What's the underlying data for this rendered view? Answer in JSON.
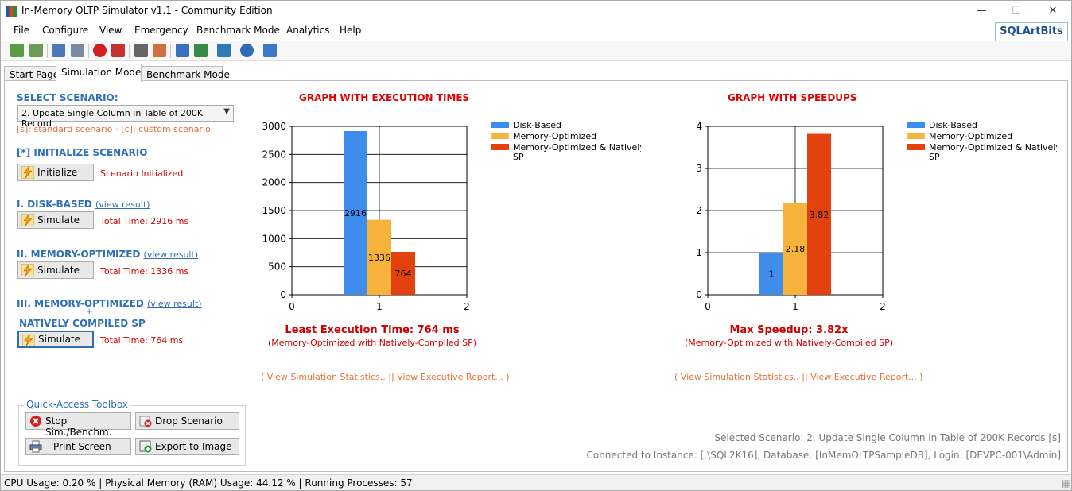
{
  "window": {
    "title": "In-Memory OLTP Simulator v1.1 - Community Edition",
    "minimize": "—",
    "maximize": "☐",
    "close": "✕"
  },
  "menu": [
    "File",
    "Configure",
    "View",
    "Emergency",
    "Benchmark Mode",
    "Analytics",
    "Help"
  ],
  "brand": "SQLArtBits",
  "tabs": [
    "Start Page",
    "Simulation Mode",
    "Benchmark Mode"
  ],
  "active_tab": "Simulation Mode",
  "left": {
    "select_scenario_label": "SELECT SCENARIO:",
    "scenario_selected": "2. Update Single Column in Table of 200K Record",
    "scenario_hint": "[s]: standard scenario  -  [c]: custom scenario",
    "init_label": "[*] INITIALIZE SCENARIO",
    "init_button": "Initialize",
    "init_status": "Scenario Initialized",
    "disk_label": "I. DISK-BASED",
    "mem_label": "II. MEMORY-OPTIMIZED",
    "native_label_1": "III. MEMORY-OPTIMIZED",
    "native_plus": "+",
    "native_label_2": "NATIVELY COMPILED SP",
    "view_result": "(view result)",
    "simulate_button": "Simulate",
    "disk_time": "Total Time: 2916 ms",
    "mem_time": "Total Time: 1336 ms",
    "native_time": "Total Time: 764 ms"
  },
  "charts_text": {
    "exec_title": "GRAPH WITH EXECUTION TIMES",
    "exec_result": "Least Execution Time: 764 ms",
    "exec_sub": "(Memory-Optimized with Natively-Compiled SP)",
    "speed_title": "GRAPH WITH SPEEDUPS",
    "speed_result": "Max Speedup: 3.82x",
    "speed_sub": "(Memory-Optimized with Natively-Compiled SP)",
    "link_open": "(",
    "link_stats": "View Simulation Statistics..",
    "link_sep": "||",
    "link_report": "View Executive Report...",
    "link_close": ")"
  },
  "chart_data": [
    {
      "type": "bar",
      "title": "GRAPH WITH EXECUTION TIMES",
      "xlabel": "",
      "ylabel": "",
      "x_ticks": [
        "0",
        "1",
        "2"
      ],
      "y_ticks": [
        "0",
        "500",
        "1000",
        "1500",
        "2000",
        "2500",
        "3000"
      ],
      "ylim": [
        0,
        3000
      ],
      "xlim": [
        0,
        2
      ],
      "grid": true,
      "legend_position": "right",
      "series": [
        {
          "name": "Disk-Based",
          "values": [
            2916
          ],
          "color": "#3f8ced",
          "label": "2916"
        },
        {
          "name": "Memory-Optimized",
          "values": [
            1336
          ],
          "color": "#f6b23a",
          "label": "1336"
        },
        {
          "name": "Memory-Optimized & Natively Compiled SP",
          "values": [
            764
          ],
          "color": "#e3420f",
          "label": "764"
        }
      ]
    },
    {
      "type": "bar",
      "title": "GRAPH WITH SPEEDUPS",
      "xlabel": "",
      "ylabel": "",
      "x_ticks": [
        "0",
        "1",
        "2"
      ],
      "y_ticks": [
        "0",
        "1",
        "2",
        "3",
        "4"
      ],
      "ylim": [
        0,
        4
      ],
      "xlim": [
        0,
        2
      ],
      "grid": true,
      "legend_position": "right",
      "series": [
        {
          "name": "Disk-Based",
          "values": [
            1
          ],
          "color": "#3f8ced",
          "label": "1"
        },
        {
          "name": "Memory-Optimized",
          "values": [
            2.18
          ],
          "color": "#f6b23a",
          "label": "2.18"
        },
        {
          "name": "Memory-Optimized & Natively Compiled SP",
          "values": [
            3.82
          ],
          "color": "#e3420f",
          "label": "3.82"
        }
      ]
    }
  ],
  "quick_access": {
    "title": "Quick-Access Toolbox",
    "stop": "Stop Sim./Benchm.",
    "drop": "Drop Scenario",
    "print": "Print Screen",
    "export": "Export to Image"
  },
  "footer": {
    "selected": "Selected Scenario: 2. Update Single Column in Table of 200K Records [s]",
    "connected": "Connected to Instance: [.\\SQL2K16], Database: [InMemOLTPSampleDB], Login: [DEVPC-001\\Admin]"
  },
  "status": "CPU Usage: 0.20 % | Physical Memory (RAM) Usage: 44.12 % | Running Processes: 57"
}
